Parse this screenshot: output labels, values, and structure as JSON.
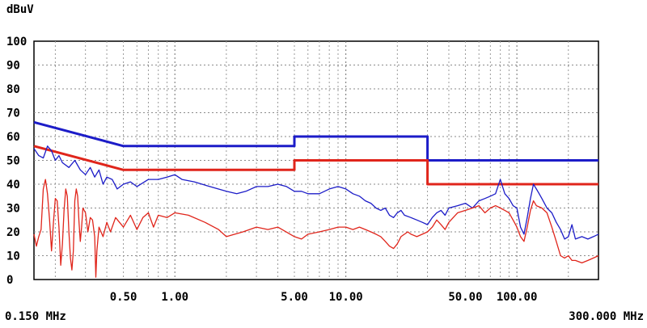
{
  "chart_data": {
    "type": "line",
    "title": "",
    "xlabel": "",
    "ylabel": "dBuV",
    "x_scale": "log",
    "xlim": [
      0.15,
      300
    ],
    "ylim": [
      0,
      100
    ],
    "grid": true,
    "y_ticks": [
      {
        "value": 0,
        "label": "0"
      },
      {
        "value": 10,
        "label": "10"
      },
      {
        "value": 20,
        "label": "20"
      },
      {
        "value": 30,
        "label": "30"
      },
      {
        "value": 40,
        "label": "40"
      },
      {
        "value": 50,
        "label": "50"
      },
      {
        "value": 60,
        "label": "60"
      },
      {
        "value": 70,
        "label": "70"
      },
      {
        "value": 80,
        "label": "80"
      },
      {
        "value": 90,
        "label": "90"
      },
      {
        "value": 100,
        "label": "100"
      }
    ],
    "x_tick_labels": [
      {
        "value": 0.5,
        "label": "0.50"
      },
      {
        "value": 1,
        "label": "1.00"
      },
      {
        "value": 5,
        "label": "5.00"
      },
      {
        "value": 10,
        "label": "10.00"
      },
      {
        "value": 50,
        "label": "50.00"
      },
      {
        "value": 100,
        "label": "100.00"
      }
    ],
    "x_edge_labels": {
      "start": "0.150 MHz",
      "end": "300.000 MHz"
    },
    "series": [
      {
        "color": "#1c1cc8",
        "style": "limit",
        "points": [
          [
            0.15,
            66
          ],
          [
            0.5,
            56
          ],
          [
            5,
            56
          ],
          [
            5,
            60
          ],
          [
            30,
            60
          ],
          [
            30,
            50
          ],
          [
            300,
            50
          ]
        ]
      },
      {
        "color": "#e0251b",
        "style": "limit",
        "points": [
          [
            0.15,
            56
          ],
          [
            0.5,
            46
          ],
          [
            5,
            46
          ],
          [
            5,
            50
          ],
          [
            30,
            50
          ],
          [
            30,
            40
          ],
          [
            300,
            40
          ]
        ]
      },
      {
        "color": "#1c1cc8",
        "style": "trace",
        "points": [
          [
            0.15,
            55
          ],
          [
            0.16,
            52
          ],
          [
            0.17,
            51
          ],
          [
            0.18,
            56
          ],
          [
            0.19,
            54
          ],
          [
            0.2,
            50
          ],
          [
            0.21,
            52
          ],
          [
            0.22,
            49
          ],
          [
            0.24,
            47
          ],
          [
            0.26,
            50
          ],
          [
            0.28,
            46
          ],
          [
            0.3,
            44
          ],
          [
            0.32,
            47
          ],
          [
            0.34,
            43
          ],
          [
            0.36,
            46
          ],
          [
            0.38,
            40
          ],
          [
            0.4,
            43
          ],
          [
            0.43,
            42
          ],
          [
            0.46,
            38
          ],
          [
            0.5,
            40
          ],
          [
            0.55,
            41
          ],
          [
            0.6,
            39
          ],
          [
            0.7,
            42
          ],
          [
            0.8,
            42
          ],
          [
            0.9,
            43
          ],
          [
            1.0,
            44
          ],
          [
            1.1,
            42
          ],
          [
            1.3,
            41
          ],
          [
            1.6,
            39
          ],
          [
            2.0,
            37
          ],
          [
            2.3,
            36
          ],
          [
            2.6,
            37
          ],
          [
            3.0,
            39
          ],
          [
            3.5,
            39
          ],
          [
            4.0,
            40
          ],
          [
            4.5,
            39
          ],
          [
            5.0,
            37
          ],
          [
            5.5,
            37
          ],
          [
            6.0,
            36
          ],
          [
            7.0,
            36
          ],
          [
            8.0,
            38
          ],
          [
            9.0,
            39
          ],
          [
            10,
            38
          ],
          [
            11,
            36
          ],
          [
            12,
            35
          ],
          [
            13,
            33
          ],
          [
            14,
            32
          ],
          [
            15,
            30
          ],
          [
            16,
            29
          ],
          [
            17,
            30
          ],
          [
            18,
            27
          ],
          [
            19,
            26
          ],
          [
            20,
            28
          ],
          [
            21,
            29
          ],
          [
            22,
            27
          ],
          [
            24,
            26
          ],
          [
            26,
            25
          ],
          [
            28,
            24
          ],
          [
            30,
            23
          ],
          [
            32,
            26
          ],
          [
            34,
            28
          ],
          [
            36,
            29
          ],
          [
            38,
            27
          ],
          [
            40,
            30
          ],
          [
            45,
            31
          ],
          [
            50,
            32
          ],
          [
            55,
            30
          ],
          [
            60,
            33
          ],
          [
            65,
            34
          ],
          [
            70,
            35
          ],
          [
            75,
            36
          ],
          [
            80,
            42
          ],
          [
            85,
            36
          ],
          [
            90,
            34
          ],
          [
            95,
            31
          ],
          [
            100,
            30
          ],
          [
            105,
            22
          ],
          [
            110,
            19
          ],
          [
            115,
            26
          ],
          [
            120,
            34
          ],
          [
            125,
            40
          ],
          [
            130,
            38
          ],
          [
            135,
            36
          ],
          [
            140,
            34
          ],
          [
            150,
            30
          ],
          [
            160,
            28
          ],
          [
            170,
            24
          ],
          [
            180,
            21
          ],
          [
            190,
            17
          ],
          [
            200,
            18
          ],
          [
            210,
            23
          ],
          [
            220,
            17
          ],
          [
            240,
            18
          ],
          [
            260,
            17
          ],
          [
            280,
            18
          ],
          [
            300,
            19
          ]
        ]
      },
      {
        "color": "#e0251b",
        "style": "trace",
        "points": [
          [
            0.15,
            19
          ],
          [
            0.155,
            14
          ],
          [
            0.16,
            18
          ],
          [
            0.165,
            21
          ],
          [
            0.17,
            38
          ],
          [
            0.175,
            42
          ],
          [
            0.18,
            36
          ],
          [
            0.185,
            25
          ],
          [
            0.19,
            12
          ],
          [
            0.195,
            24
          ],
          [
            0.2,
            34
          ],
          [
            0.205,
            33
          ],
          [
            0.21,
            22
          ],
          [
            0.215,
            6
          ],
          [
            0.22,
            15
          ],
          [
            0.225,
            29
          ],
          [
            0.23,
            38
          ],
          [
            0.235,
            35
          ],
          [
            0.24,
            20
          ],
          [
            0.245,
            9
          ],
          [
            0.25,
            4
          ],
          [
            0.255,
            12
          ],
          [
            0.26,
            33
          ],
          [
            0.265,
            38
          ],
          [
            0.27,
            35
          ],
          [
            0.275,
            24
          ],
          [
            0.28,
            16
          ],
          [
            0.285,
            22
          ],
          [
            0.29,
            30
          ],
          [
            0.3,
            28
          ],
          [
            0.31,
            20
          ],
          [
            0.32,
            26
          ],
          [
            0.33,
            25
          ],
          [
            0.34,
            18
          ],
          [
            0.345,
            1
          ],
          [
            0.35,
            12
          ],
          [
            0.36,
            22
          ],
          [
            0.38,
            18
          ],
          [
            0.4,
            24
          ],
          [
            0.42,
            20
          ],
          [
            0.45,
            26
          ],
          [
            0.5,
            22
          ],
          [
            0.55,
            27
          ],
          [
            0.6,
            21
          ],
          [
            0.65,
            26
          ],
          [
            0.7,
            28
          ],
          [
            0.75,
            22
          ],
          [
            0.8,
            27
          ],
          [
            0.9,
            26
          ],
          [
            1.0,
            28
          ],
          [
            1.2,
            27
          ],
          [
            1.5,
            24
          ],
          [
            1.8,
            21
          ],
          [
            2.0,
            18
          ],
          [
            2.5,
            20
          ],
          [
            3.0,
            22
          ],
          [
            3.5,
            21
          ],
          [
            4.0,
            22
          ],
          [
            5.0,
            18
          ],
          [
            5.5,
            17
          ],
          [
            6.0,
            19
          ],
          [
            7.0,
            20
          ],
          [
            8.0,
            21
          ],
          [
            9.0,
            22
          ],
          [
            10,
            22
          ],
          [
            11,
            21
          ],
          [
            12,
            22
          ],
          [
            13,
            21
          ],
          [
            14,
            20
          ],
          [
            15,
            19
          ],
          [
            16,
            18
          ],
          [
            17,
            16
          ],
          [
            18,
            14
          ],
          [
            19,
            13
          ],
          [
            20,
            15
          ],
          [
            21,
            18
          ],
          [
            22,
            19
          ],
          [
            23,
            20
          ],
          [
            24,
            19
          ],
          [
            26,
            18
          ],
          [
            28,
            19
          ],
          [
            30,
            20
          ],
          [
            32,
            22
          ],
          [
            34,
            25
          ],
          [
            36,
            23
          ],
          [
            38,
            21
          ],
          [
            40,
            24
          ],
          [
            45,
            28
          ],
          [
            50,
            29
          ],
          [
            55,
            30
          ],
          [
            60,
            31
          ],
          [
            65,
            28
          ],
          [
            70,
            30
          ],
          [
            75,
            31
          ],
          [
            80,
            30
          ],
          [
            85,
            29
          ],
          [
            90,
            28
          ],
          [
            95,
            25
          ],
          [
            100,
            22
          ],
          [
            105,
            18
          ],
          [
            110,
            16
          ],
          [
            115,
            22
          ],
          [
            120,
            29
          ],
          [
            125,
            33
          ],
          [
            130,
            31
          ],
          [
            140,
            30
          ],
          [
            150,
            28
          ],
          [
            160,
            22
          ],
          [
            170,
            16
          ],
          [
            180,
            10
          ],
          [
            190,
            9
          ],
          [
            200,
            10
          ],
          [
            210,
            8
          ],
          [
            220,
            8
          ],
          [
            240,
            7
          ],
          [
            260,
            8
          ],
          [
            280,
            9
          ],
          [
            300,
            10
          ]
        ]
      }
    ]
  }
}
